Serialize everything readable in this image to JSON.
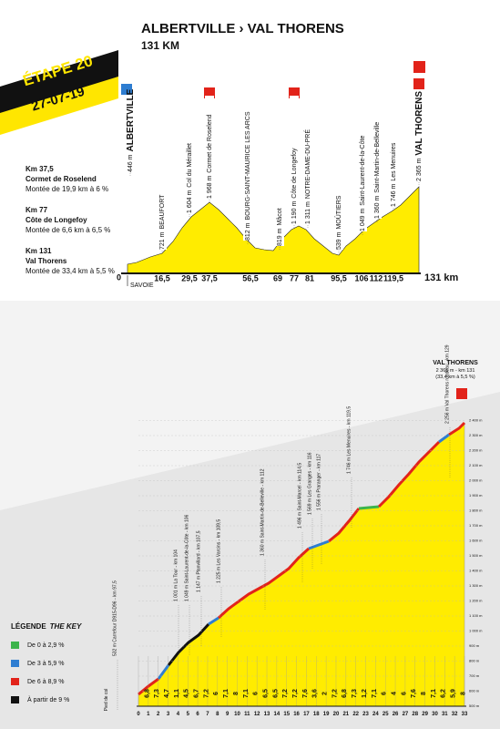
{
  "header": {
    "stage": "ÉTAPE 20",
    "date": "27-07-19",
    "title": "ALBERTVILLE › VAL THORENS",
    "distance": "131 KM"
  },
  "profile": {
    "start": "0",
    "end": "131 km",
    "region": "SAVOIE",
    "kms": [
      "16,5",
      "29,5",
      "37,5",
      "56,5",
      "69",
      "77",
      "81",
      "95,5",
      "106",
      "112",
      "119,5"
    ],
    "places": [
      {
        "alt": "446 m",
        "name": "ALBERTVILLE"
      },
      {
        "alt": "721 m",
        "name": "BEAUFORT"
      },
      {
        "alt": "1 604 m",
        "name": "Col du Méraillet"
      },
      {
        "alt": "1 968 m",
        "name": "Cormet de Roselend"
      },
      {
        "alt": "812 m",
        "name": "BOURG-SAINT-MAURICE LES ARCS"
      },
      {
        "alt": "819 m",
        "name": "Mâcot"
      },
      {
        "alt": "1 190 m",
        "name": "Côte de Longefoy"
      },
      {
        "alt": "1 311 m",
        "name": "NOTRE-DAME-DU-PRÉ"
      },
      {
        "alt": "539 m",
        "name": "MOÛTIERS"
      },
      {
        "alt": "1 049 m",
        "name": "Saint-Laurent-de-la-Côte"
      },
      {
        "alt": "1 360 m",
        "name": "Saint-Martin-de-Belleville"
      },
      {
        "alt": "1 746 m",
        "name": "Les Menuires"
      },
      {
        "alt": "2 365 m",
        "name": "VAL THORENS"
      }
    ]
  },
  "climbs": [
    {
      "km": "Km 37,5",
      "name": "Cormet de Roselend",
      "detail": "Montée de 19,9 km à 6 %"
    },
    {
      "km": "Km 77",
      "name": "Côte de Longefoy",
      "detail": "Montée de 6,6 km à 6,5 %"
    },
    {
      "km": "Km 131",
      "name": "Val Thorens",
      "detail": "Montée de 33,4 km à 5,5 %"
    }
  ],
  "final_climb": {
    "title": "VAL THORENS",
    "summary": "2 365 m - km 131",
    "detail": "(33,4 km à 5,5 %)",
    "gradients": [
      "6,8",
      "7,3",
      "4,7",
      "1,1",
      "4,5",
      "6,7",
      "7,2",
      "6",
      "7,1",
      "8",
      "7,1",
      "6",
      "6,5",
      "6,5",
      "7,2",
      "7,2",
      "7,6",
      "3,6",
      "2",
      "7,2",
      "6,8",
      "7,3",
      "1,2",
      "7,1",
      "6",
      "4",
      "6",
      "7,6",
      "8",
      "7,1",
      "6,2",
      "5,9",
      "8"
    ],
    "kms": [
      "0",
      "1",
      "2",
      "3",
      "4",
      "5",
      "6",
      "7",
      "8",
      "9",
      "10",
      "11",
      "12",
      "13",
      "14",
      "15",
      "16",
      "17",
      "18",
      "19",
      "20",
      "21",
      "22",
      "23",
      "24",
      "25",
      "26",
      "27",
      "28",
      "29",
      "30",
      "31",
      "32",
      "33"
    ],
    "altitudes": [
      "500 m",
      "600 m",
      "700 m",
      "800 m",
      "900 m",
      "1 000 m",
      "1 100 m",
      "1 200 m",
      "1 300 m",
      "1 400 m",
      "1 500 m",
      "1 600 m",
      "1 700 m",
      "1 800 m",
      "1 900 m",
      "2 000 m",
      "2 100 m",
      "2 200 m",
      "2 300 m",
      "2 400 m"
    ],
    "waypoints": [
      "532 m Carrefour D915-D96 - km 97,5",
      "1 001 m La Tour - km 104",
      "1 049 m Saint-Laurent-de-la-Côte - km 106",
      "1 147 m Planvillard - km 107,5",
      "1 225 m Les Varcins - km 109,5",
      "1 360 m Saint-Martin-de-Belleville - km 112",
      "1 496 m Saint-Marcel - km 114,5",
      "1 569 m Les Granges - km 116",
      "1 556 m Praranger - km 117",
      "1 746 m Les Menuires - km 119,5",
      "2 256 m Val Thorens rondeau - km 129"
    ],
    "foot": "Pied de col"
  },
  "legend": {
    "title": "LÉGENDE",
    "title_en": "THE KEY",
    "items": [
      "De 0 à 2,9 %",
      "De 3 à 5,9 %",
      "De 6 à 8,9 %",
      "À partir de 9 %"
    ]
  }
}
